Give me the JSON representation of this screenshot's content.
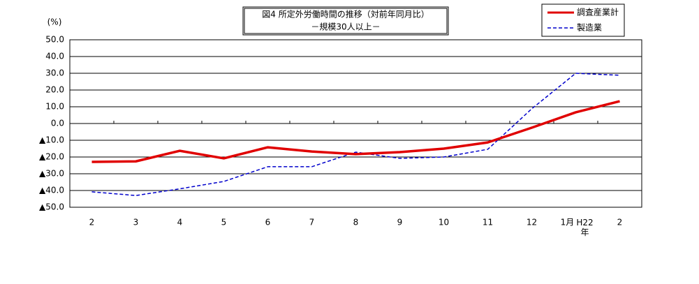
{
  "chart_data": {
    "type": "line",
    "title": "図4 所定外労働時間の推移（対前年同月比）",
    "subtitle": "－規模30人以上－",
    "y_label": "(%)",
    "year_label": "H22年",
    "categories": [
      "2",
      "3",
      "4",
      "5",
      "6",
      "7",
      "8",
      "9",
      "10",
      "11",
      "12",
      "1月",
      "2"
    ],
    "series": [
      {
        "name": "調査産業計",
        "color": "#e00000",
        "values": [
          -22.9,
          -22.6,
          -16.3,
          -20.8,
          -14.2,
          -16.7,
          -18.3,
          -17.1,
          -15.0,
          -11.3,
          -2.5,
          6.7,
          13.3
        ]
      },
      {
        "name": "製造業",
        "color": "#0000cc",
        "values": [
          -40.8,
          -43.0,
          -39.0,
          -34.6,
          -25.8,
          -25.8,
          -17.1,
          -20.8,
          -20.0,
          -15.4,
          8.8,
          30.0,
          28.8
        ]
      }
    ],
    "ylim": [
      -50,
      50
    ],
    "yticks": [
      {
        "value": 50,
        "label": "50.0"
      },
      {
        "value": 40,
        "label": "40.0"
      },
      {
        "value": 30,
        "label": "30.0"
      },
      {
        "value": 20,
        "label": "20.0"
      },
      {
        "value": 10,
        "label": "10.0"
      },
      {
        "value": 0,
        "label": "0.0"
      },
      {
        "value": -10,
        "label": "▲10.0"
      },
      {
        "value": -20,
        "label": "▲20.0"
      },
      {
        "value": -30,
        "label": "▲30.0"
      },
      {
        "value": -40,
        "label": "▲40.0"
      },
      {
        "value": -50,
        "label": "▲50.0"
      }
    ],
    "grid": true
  }
}
